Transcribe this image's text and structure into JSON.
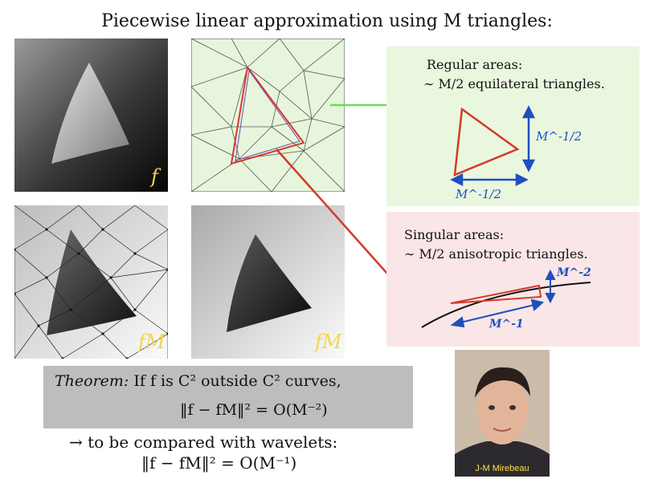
{
  "title": "Piecewise linear approximation using M triangles:",
  "panels": {
    "f_label": "f",
    "fM_label_mesh": "fM",
    "fM_label_smooth": "fM"
  },
  "regular": {
    "line1": "Regular areas:",
    "line2": "∼ M/2 equilateral triangles.",
    "size_label_v": "M^-1/2",
    "size_label_h": "M^-1/2"
  },
  "singular": {
    "line1": "Singular areas:",
    "line2": "∼ M/2 anisotropic triangles.",
    "size_label_v": "M^-2",
    "size_label_h": "M^-1"
  },
  "theorem": {
    "label": "Theorem:",
    "line1": "If f is C² outside C² curves,",
    "line2": "‖f − fM‖² = O(M⁻²)"
  },
  "comparison": {
    "line1": "→ to be compared with wavelets:",
    "line2": "‖f − fM‖² = O(M⁻¹)"
  },
  "photo": {
    "caption": "J-M Mirebeau"
  },
  "colors": {
    "regular_bg": "#eaf7df",
    "singular_bg": "#fae6e6",
    "triangle_red": "#d23b2a",
    "arrow_blue": "#1f4fbf",
    "arrow_green": "#66dd55",
    "label_yellow": "#f2d64b"
  }
}
